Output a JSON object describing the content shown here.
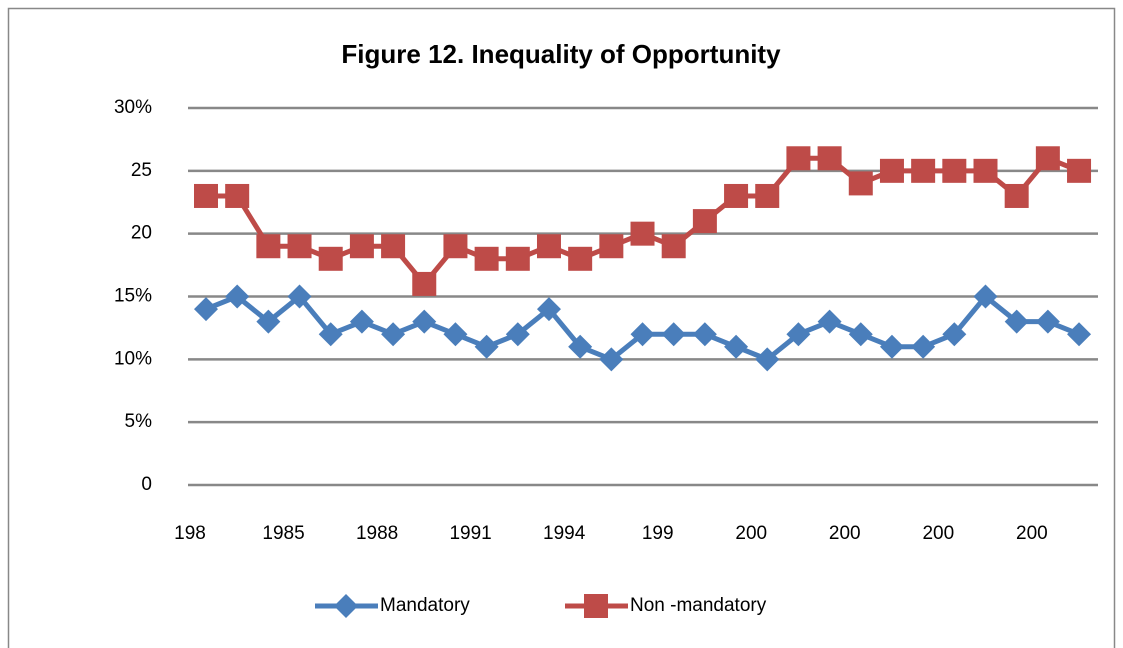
{
  "chart_data": {
    "type": "line",
    "title": "Figure 12. Inequality of Opportunity",
    "categories": [
      "198",
      null,
      null,
      "1985",
      null,
      null,
      "1988",
      null,
      null,
      "1991",
      null,
      null,
      "1994",
      null,
      null,
      "199",
      null,
      null,
      "200",
      null,
      null,
      "200",
      null,
      null,
      "200",
      null,
      null,
      "200",
      null
    ],
    "series": [
      {
        "name": "Mandatory",
        "color": "#4a7ebb",
        "marker": "diamond",
        "values": [
          14,
          15,
          13,
          15,
          12,
          13,
          12,
          13,
          12,
          11,
          12,
          14,
          11,
          10,
          12,
          12,
          12,
          11,
          10,
          12,
          13,
          12,
          11,
          11,
          12,
          15,
          13,
          13,
          12
        ]
      },
      {
        "name": "Non -mandatory",
        "color": "#be4b48",
        "marker": "square",
        "values": [
          23,
          23,
          19,
          19,
          18,
          19,
          19,
          16,
          19,
          18,
          18,
          19,
          18,
          19,
          20,
          19,
          21,
          23,
          23,
          26,
          26,
          24,
          25,
          25,
          25,
          25,
          23,
          26,
          25
        ]
      }
    ],
    "ylim": [
      0,
      30
    ],
    "yticks": [
      0,
      {
        "value": 5,
        "label": "5%"
      },
      {
        "value": 10,
        "label": "10%"
      },
      {
        "value": 15,
        "label": "15%"
      },
      20,
      25,
      {
        "value": 30,
        "label": "30%"
      }
    ],
    "grid": true,
    "legend": "bottom"
  }
}
